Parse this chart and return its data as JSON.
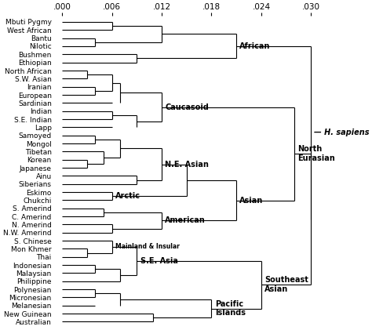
{
  "leaves": [
    "Mbuti Pygmy",
    "West African",
    "Bantu",
    "Nilotic",
    "Bushmen",
    "Ethiopian",
    "North African",
    "S.W. Asian",
    "Iranian",
    "European",
    "Sardinian",
    "Indian",
    "S.E. Indian",
    "Lapp",
    "Samoyed",
    "Mongol",
    "Tibetan",
    "Korean",
    "Japanese",
    "Ainu",
    "Siberians",
    "Eskimo",
    "Chukchi",
    "S. Amerind",
    "C. Amerind",
    "N. Amerind",
    "N.W. Amerind",
    "S. Chinese",
    "Mon Khmer",
    "Thai",
    "Indonesian",
    "Malaysian",
    "Philippine",
    "Polynesian",
    "Micronesian",
    "Melanesian",
    "New Guinean",
    "Australian"
  ],
  "background": "#ffffff",
  "xticks": [
    0.0,
    0.006,
    0.012,
    0.018,
    0.024,
    0.03
  ],
  "xtick_labels": [
    ".000",
    ".006",
    ".012",
    ".018",
    ".024",
    ".030"
  ],
  "figsize": [
    4.74,
    4.21
  ],
  "dpi": 100,
  "lw": 0.8,
  "leaf_fontsize": 6.5,
  "label_fontsize": 7.0,
  "xtick_fontsize": 7.5
}
